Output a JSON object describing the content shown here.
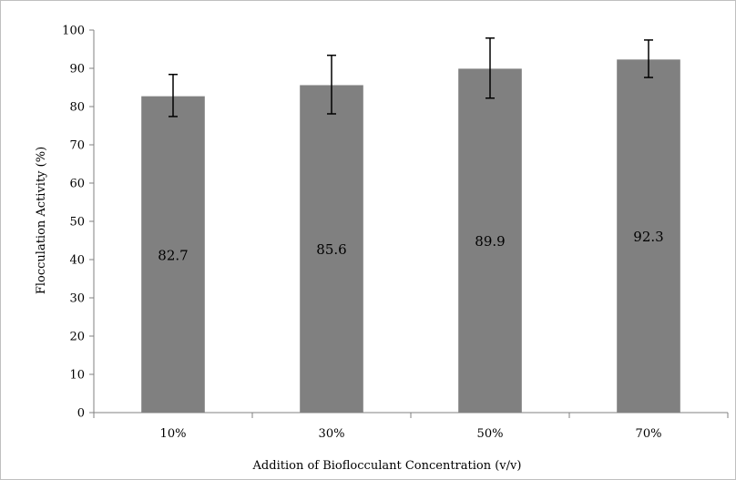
{
  "chart_data": {
    "type": "bar",
    "title": "",
    "categories": [
      "10%",
      "30%",
      "50%",
      "70%"
    ],
    "values": [
      82.7,
      85.6,
      89.9,
      92.3
    ],
    "data_labels": [
      "82.7",
      "85.6",
      "89.9",
      "92.3"
    ],
    "error_bars": [
      {
        "low": 77.4,
        "high": 88.4
      },
      {
        "low": 78.1,
        "high": 93.4
      },
      {
        "low": 82.2,
        "high": 97.9
      },
      {
        "low": 87.6,
        "high": 97.4
      }
    ],
    "xlabel": "Addition of Bioflocculant Concentration (v/v)",
    "ylabel": "Flocculation Activity (%)",
    "ylim": [
      0,
      100
    ],
    "yticks": [
      0,
      10,
      20,
      30,
      40,
      50,
      60,
      70,
      80,
      90,
      100
    ],
    "ytick_labels": [
      "0",
      "10",
      "20",
      "30",
      "40",
      "50",
      "60",
      "70",
      "80",
      "90",
      "100"
    ],
    "grid": false,
    "legend": "none",
    "colors": {
      "bar": "#808080",
      "axis": "#808080",
      "error_bar": "#000000"
    }
  }
}
